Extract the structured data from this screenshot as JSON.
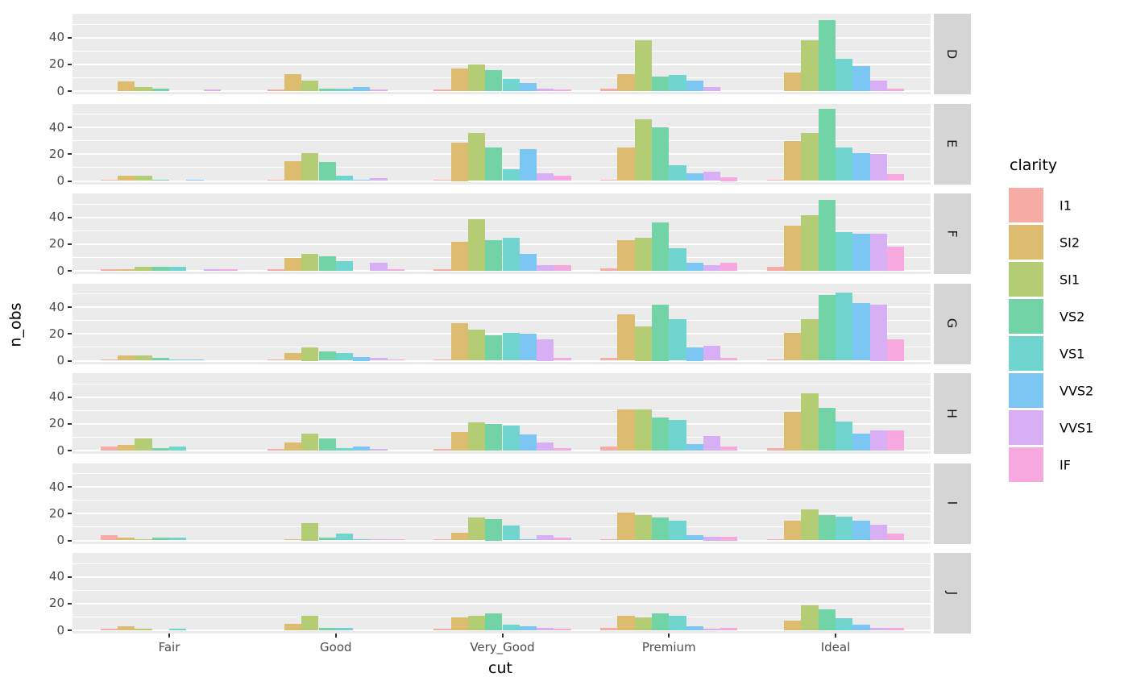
{
  "chart_data": {
    "type": "bar",
    "title": "",
    "xlabel": "cut",
    "ylabel": "n_obs",
    "legend_title": "clarity",
    "categories": [
      "Fair",
      "Good",
      "Very_Good",
      "Premium",
      "Ideal"
    ],
    "facet_rows": [
      "D",
      "E",
      "F",
      "G",
      "H",
      "I",
      "J"
    ],
    "clarity_levels": [
      "I1",
      "SI2",
      "SI1",
      "VS2",
      "VS1",
      "VVS2",
      "VVS1",
      "IF"
    ],
    "clarity_colors": {
      "I1": "#F7ABA5",
      "SI2": "#DDBB6F",
      "SI1": "#B4CD74",
      "VS2": "#72D3A6",
      "VS1": "#70D5CF",
      "VVS2": "#7BC6F3",
      "VVS1": "#D8AEF5",
      "IF": "#F7A8DF"
    },
    "theme_colors": {
      "panel_bg": "#EBEBEB",
      "strip_bg": "#D5D5D5",
      "gridline": "#FFFFFF",
      "axis_text": "#4D4D4D",
      "tick_mark": "#333333"
    },
    "y_ticks": [
      0,
      20,
      40
    ],
    "ylim": [
      0,
      58
    ],
    "grid": "on",
    "legend_position": "right",
    "values": {
      "D": {
        "Fair": [
          0,
          7,
          3,
          2,
          0,
          0,
          1,
          0
        ],
        "Good": [
          1,
          13,
          8,
          2,
          2,
          3,
          1,
          0
        ],
        "Very_Good": [
          1,
          17,
          20,
          16,
          9,
          6,
          2,
          1
        ],
        "Premium": [
          2,
          13,
          38,
          11,
          12,
          8,
          3,
          0
        ],
        "Ideal": [
          0,
          14,
          38,
          53,
          24,
          19,
          8,
          2
        ]
      },
      "E": {
        "Fair": [
          1,
          4,
          4,
          1,
          0,
          1,
          0,
          0
        ],
        "Good": [
          1,
          15,
          21,
          14,
          4,
          1,
          2,
          0
        ],
        "Very_Good": [
          1,
          29,
          36,
          25,
          9,
          24,
          6,
          4
        ],
        "Premium": [
          1,
          25,
          46,
          40,
          12,
          6,
          7,
          3
        ],
        "Ideal": [
          1,
          30,
          36,
          54,
          25,
          21,
          20,
          5
        ]
      },
      "F": {
        "Fair": [
          1,
          1,
          3,
          3,
          3,
          0,
          1,
          1
        ],
        "Good": [
          1,
          10,
          13,
          11,
          7,
          0,
          6,
          1
        ],
        "Very_Good": [
          1,
          22,
          39,
          23,
          25,
          13,
          4,
          4
        ],
        "Premium": [
          2,
          23,
          25,
          36,
          17,
          6,
          4,
          6
        ],
        "Ideal": [
          3,
          34,
          42,
          53,
          29,
          28,
          28,
          18
        ]
      },
      "G": {
        "Fair": [
          1,
          4,
          4,
          2,
          1,
          1,
          0,
          0
        ],
        "Good": [
          1,
          6,
          10,
          7,
          6,
          3,
          2,
          1
        ],
        "Very_Good": [
          1,
          28,
          23,
          19,
          21,
          20,
          16,
          2
        ],
        "Premium": [
          2,
          35,
          26,
          42,
          31,
          10,
          11,
          2
        ],
        "Ideal": [
          1,
          21,
          31,
          49,
          51,
          43,
          42,
          16
        ]
      },
      "H": {
        "Fair": [
          3,
          4,
          9,
          2,
          3,
          0,
          0,
          0
        ],
        "Good": [
          1,
          6,
          13,
          9,
          2,
          3,
          1,
          0
        ],
        "Very_Good": [
          1,
          14,
          21,
          20,
          19,
          12,
          6,
          2
        ],
        "Premium": [
          3,
          31,
          31,
          25,
          23,
          5,
          11,
          3
        ],
        "Ideal": [
          2,
          29,
          43,
          32,
          22,
          13,
          15,
          15
        ]
      },
      "I": {
        "Fair": [
          4,
          2,
          1,
          2,
          2,
          0,
          0,
          0
        ],
        "Good": [
          0,
          1,
          13,
          2,
          5,
          1,
          1,
          1
        ],
        "Very_Good": [
          1,
          6,
          17,
          16,
          11,
          1,
          4,
          2
        ],
        "Premium": [
          1,
          21,
          19,
          17,
          15,
          4,
          3,
          3
        ],
        "Ideal": [
          1,
          15,
          23,
          19,
          18,
          15,
          12,
          5
        ]
      },
      "J": {
        "Fair": [
          1,
          3,
          1,
          0,
          1,
          0,
          0,
          0
        ],
        "Good": [
          0,
          5,
          11,
          2,
          2,
          0,
          0,
          0
        ],
        "Very_Good": [
          1,
          10,
          11,
          13,
          4,
          3,
          2,
          1
        ],
        "Premium": [
          2,
          11,
          10,
          13,
          11,
          3,
          1,
          2
        ],
        "Ideal": [
          0,
          7,
          19,
          16,
          9,
          4,
          2,
          2
        ]
      }
    }
  }
}
